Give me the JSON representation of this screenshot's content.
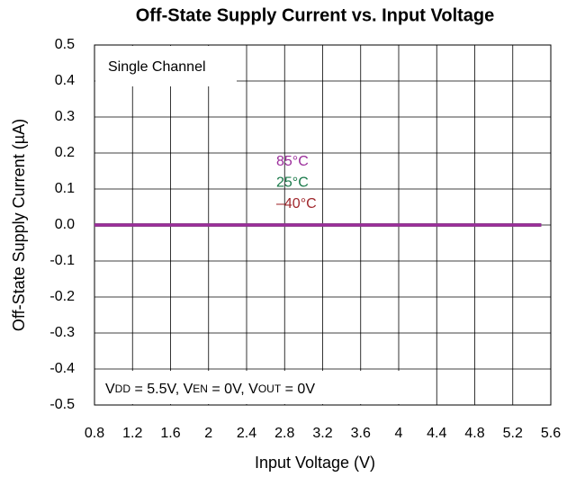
{
  "chart_data": {
    "type": "line",
    "title": "Off-State Supply Current vs. Input Voltage",
    "xlabel": "Input Voltage (V)",
    "ylabel": "Off-State Supply Current (µA)",
    "annotations": [
      "Single Channel"
    ],
    "conditions": [
      {
        "text": "V"
      },
      {
        "text": "DD",
        "sub": true
      },
      {
        "text": " = 5.5V, V"
      },
      {
        "text": "EN",
        "sub": true
      },
      {
        "text": " = 0V, V"
      },
      {
        "text": "OUT",
        "sub": true
      },
      {
        "text": " = 0V"
      }
    ],
    "x": [
      0.8,
      1.6,
      2.4,
      3.2,
      4,
      4.8,
      5.5
    ],
    "series": [
      {
        "name": "–40°C",
        "color": "#a0282d",
        "values": [
          0,
          0,
          0,
          0,
          0,
          0,
          0
        ]
      },
      {
        "name": "25°C",
        "color": "#1a7a4a",
        "values": [
          0,
          0,
          0,
          0,
          0,
          0,
          0
        ]
      },
      {
        "name": "85°C",
        "color": "#9b2d9b",
        "values": [
          0,
          0,
          0,
          0,
          0,
          0,
          0
        ]
      }
    ],
    "xlim": [
      0.8,
      5.6
    ],
    "xticks": [
      0.8,
      1.2,
      1.6,
      2,
      2.4,
      2.8,
      3.2,
      3.6,
      4,
      4.4,
      4.8,
      5.2,
      5.6
    ],
    "ylim": [
      -0.5,
      0.5
    ],
    "yticks": [
      -0.5,
      -0.4,
      -0.3,
      -0.2,
      -0.1,
      {
        "value": 0,
        "label": "0.0"
      },
      0.1,
      0.2,
      0.3,
      0.4,
      0.5
    ],
    "grid": true
  }
}
